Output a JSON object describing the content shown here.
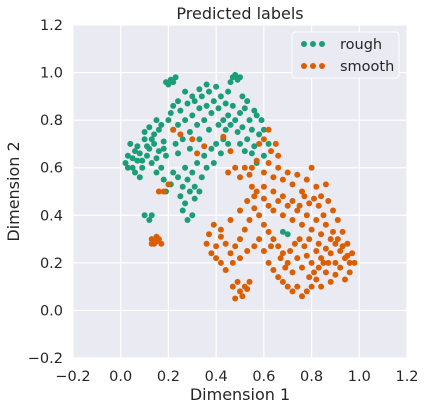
{
  "chart_data": {
    "type": "scatter",
    "title": "Predicted labels",
    "xlabel": "Dimension 1",
    "ylabel": "Dimension 2",
    "xlim": [
      -0.2,
      1.2
    ],
    "ylim": [
      -0.2,
      1.2
    ],
    "xticks": [
      "−0.2",
      "0.0",
      "0.2",
      "0.4",
      "0.6",
      "0.8",
      "1.0",
      "1.2"
    ],
    "yticks": [
      "−0.2",
      "0.0",
      "0.2",
      "0.4",
      "0.6",
      "0.8",
      "1.0",
      "1.2"
    ],
    "grid": true,
    "legend_position": "top-right",
    "background": "#EAEAF2",
    "series": [
      {
        "name": "rough",
        "color": "#1B9E77",
        "points": [
          [
            0.02,
            0.62
          ],
          [
            0.03,
            0.65
          ],
          [
            0.05,
            0.6
          ],
          [
            0.06,
            0.67
          ],
          [
            0.04,
            0.7
          ],
          [
            0.07,
            0.63
          ],
          [
            0.08,
            0.66
          ],
          [
            0.09,
            0.6
          ],
          [
            0.1,
            0.72
          ],
          [
            0.11,
            0.65
          ],
          [
            0.12,
            0.68
          ],
          [
            0.13,
            0.62
          ],
          [
            0.14,
            0.7
          ],
          [
            0.15,
            0.64
          ],
          [
            0.1,
            0.75
          ],
          [
            0.12,
            0.77
          ],
          [
            0.14,
            0.74
          ],
          [
            0.16,
            0.67
          ],
          [
            0.17,
            0.6
          ],
          [
            0.18,
            0.71
          ],
          [
            0.19,
            0.65
          ],
          [
            0.2,
            0.8
          ],
          [
            0.22,
            0.76
          ],
          [
            0.21,
            0.83
          ],
          [
            0.23,
            0.7
          ],
          [
            0.24,
            0.78
          ],
          [
            0.25,
            0.84
          ],
          [
            0.26,
            0.72
          ],
          [
            0.27,
            0.8
          ],
          [
            0.28,
            0.87
          ],
          [
            0.29,
            0.75
          ],
          [
            0.3,
            0.82
          ],
          [
            0.31,
            0.88
          ],
          [
            0.32,
            0.78
          ],
          [
            0.33,
            0.85
          ],
          [
            0.34,
            0.9
          ],
          [
            0.35,
            0.8
          ],
          [
            0.36,
            0.86
          ],
          [
            0.37,
            0.92
          ],
          [
            0.38,
            0.83
          ],
          [
            0.39,
            0.88
          ],
          [
            0.4,
            0.94
          ],
          [
            0.41,
            0.85
          ],
          [
            0.42,
            0.9
          ],
          [
            0.43,
            0.8
          ],
          [
            0.44,
            0.87
          ],
          [
            0.45,
            0.82
          ],
          [
            0.46,
            0.78
          ],
          [
            0.47,
            0.86
          ],
          [
            0.48,
            0.8
          ],
          [
            0.49,
            0.75
          ],
          [
            0.5,
            0.83
          ],
          [
            0.51,
            0.77
          ],
          [
            0.52,
            0.85
          ],
          [
            0.53,
            0.72
          ],
          [
            0.54,
            0.8
          ],
          [
            0.55,
            0.76
          ],
          [
            0.56,
            0.69
          ],
          [
            0.57,
            0.82
          ],
          [
            0.58,
            0.74
          ],
          [
            0.2,
            0.95
          ],
          [
            0.21,
            0.97
          ],
          [
            0.22,
            0.96
          ],
          [
            0.23,
            0.98
          ],
          [
            0.19,
            0.96
          ],
          [
            0.47,
            0.98
          ],
          [
            0.48,
            0.99
          ],
          [
            0.49,
            0.97
          ],
          [
            0.5,
            0.98
          ],
          [
            0.46,
            0.96
          ],
          [
            0.18,
            0.55
          ],
          [
            0.19,
            0.5
          ],
          [
            0.21,
            0.53
          ],
          [
            0.22,
            0.58
          ],
          [
            0.24,
            0.56
          ],
          [
            0.26,
            0.52
          ],
          [
            0.27,
            0.6
          ],
          [
            0.28,
            0.55
          ],
          [
            0.3,
            0.58
          ],
          [
            0.31,
            0.52
          ],
          [
            0.32,
            0.62
          ],
          [
            0.34,
            0.56
          ],
          [
            0.35,
            0.65
          ],
          [
            0.36,
            0.6
          ],
          [
            0.38,
            0.68
          ],
          [
            0.39,
            0.62
          ],
          [
            0.4,
            0.7
          ],
          [
            0.42,
            0.66
          ],
          [
            0.43,
            0.72
          ],
          [
            0.45,
            0.7
          ],
          [
            0.25,
            0.48
          ],
          [
            0.27,
            0.45
          ],
          [
            0.29,
            0.5
          ],
          [
            0.31,
            0.47
          ],
          [
            0.33,
            0.5
          ],
          [
            0.28,
            0.38
          ],
          [
            0.3,
            0.4
          ],
          [
            0.26,
            0.42
          ],
          [
            0.12,
            0.38
          ],
          [
            0.1,
            0.4
          ],
          [
            0.13,
            0.4
          ],
          [
            0.08,
            0.56
          ],
          [
            0.06,
            0.58
          ],
          [
            0.15,
            0.58
          ],
          [
            0.16,
            0.76
          ],
          [
            0.18,
            0.68
          ],
          [
            0.24,
            0.66
          ],
          [
            0.29,
            0.68
          ],
          [
            0.33,
            0.72
          ],
          [
            0.37,
            0.76
          ],
          [
            0.41,
            0.78
          ],
          [
            0.44,
            0.76
          ],
          [
            0.5,
            0.7
          ],
          [
            0.52,
            0.67
          ],
          [
            0.55,
            0.66
          ],
          [
            0.57,
            0.62
          ],
          [
            0.6,
            0.65
          ],
          [
            0.62,
            0.7
          ],
          [
            0.6,
            0.76
          ],
          [
            0.59,
            0.8
          ],
          [
            0.56,
            0.84
          ],
          [
            0.53,
            0.88
          ],
          [
            0.51,
            0.9
          ],
          [
            0.45,
            0.92
          ],
          [
            0.36,
            0.95
          ],
          [
            0.33,
            0.93
          ],
          [
            0.3,
            0.9
          ],
          [
            0.27,
            0.92
          ],
          [
            0.24,
            0.88
          ],
          [
            0.22,
            0.86
          ],
          [
            0.17,
            0.78
          ],
          [
            0.15,
            0.8
          ],
          [
            0.13,
            0.72
          ],
          [
            0.11,
            0.69
          ],
          [
            0.09,
            0.63
          ],
          [
            0.07,
            0.69
          ],
          [
            0.05,
            0.64
          ],
          [
            0.03,
            0.6
          ],
          [
            0.68,
            0.33
          ],
          [
            0.7,
            0.32
          ]
        ]
      },
      {
        "name": "smooth",
        "color": "#D95F02",
        "points": [
          [
            0.55,
            0.6
          ],
          [
            0.57,
            0.63
          ],
          [
            0.6,
            0.58
          ],
          [
            0.62,
            0.62
          ],
          [
            0.64,
            0.56
          ],
          [
            0.66,
            0.6
          ],
          [
            0.68,
            0.55
          ],
          [
            0.7,
            0.58
          ],
          [
            0.72,
            0.53
          ],
          [
            0.74,
            0.57
          ],
          [
            0.76,
            0.5
          ],
          [
            0.78,
            0.55
          ],
          [
            0.8,
            0.6
          ],
          [
            0.82,
            0.52
          ],
          [
            0.84,
            0.48
          ],
          [
            0.86,
            0.53
          ],
          [
            0.63,
            0.67
          ],
          [
            0.65,
            0.7
          ],
          [
            0.6,
            0.72
          ],
          [
            0.62,
            0.76
          ],
          [
            0.58,
            0.7
          ],
          [
            0.66,
            0.65
          ],
          [
            0.55,
            0.52
          ],
          [
            0.57,
            0.5
          ],
          [
            0.6,
            0.47
          ],
          [
            0.62,
            0.44
          ],
          [
            0.64,
            0.42
          ],
          [
            0.66,
            0.46
          ],
          [
            0.68,
            0.4
          ],
          [
            0.7,
            0.44
          ],
          [
            0.72,
            0.38
          ],
          [
            0.74,
            0.42
          ],
          [
            0.76,
            0.36
          ],
          [
            0.78,
            0.4
          ],
          [
            0.8,
            0.34
          ],
          [
            0.82,
            0.38
          ],
          [
            0.84,
            0.32
          ],
          [
            0.86,
            0.36
          ],
          [
            0.88,
            0.3
          ],
          [
            0.9,
            0.28
          ],
          [
            0.92,
            0.25
          ],
          [
            0.94,
            0.22
          ],
          [
            0.96,
            0.2
          ],
          [
            0.9,
            0.2
          ],
          [
            0.88,
            0.24
          ],
          [
            0.86,
            0.26
          ],
          [
            0.84,
            0.22
          ],
          [
            0.82,
            0.25
          ],
          [
            0.8,
            0.2
          ],
          [
            0.78,
            0.23
          ],
          [
            0.76,
            0.18
          ],
          [
            0.74,
            0.22
          ],
          [
            0.72,
            0.16
          ],
          [
            0.7,
            0.2
          ],
          [
            0.68,
            0.24
          ],
          [
            0.66,
            0.27
          ],
          [
            0.64,
            0.3
          ],
          [
            0.62,
            0.33
          ],
          [
            0.6,
            0.36
          ],
          [
            0.58,
            0.4
          ],
          [
            0.56,
            0.43
          ],
          [
            0.54,
            0.38
          ],
          [
            0.52,
            0.34
          ],
          [
            0.5,
            0.3
          ],
          [
            0.48,
            0.27
          ],
          [
            0.46,
            0.24
          ],
          [
            0.44,
            0.28
          ],
          [
            0.42,
            0.31
          ],
          [
            0.4,
            0.27
          ],
          [
            0.38,
            0.24
          ],
          [
            0.36,
            0.28
          ],
          [
            0.4,
            0.22
          ],
          [
            0.42,
            0.2
          ],
          [
            0.44,
            0.17
          ],
          [
            0.47,
            0.2
          ],
          [
            0.5,
            0.22
          ],
          [
            0.53,
            0.25
          ],
          [
            0.56,
            0.27
          ],
          [
            0.58,
            0.3
          ],
          [
            0.6,
            0.25
          ],
          [
            0.62,
            0.2
          ],
          [
            0.64,
            0.17
          ],
          [
            0.66,
            0.14
          ],
          [
            0.68,
            0.12
          ],
          [
            0.7,
            0.1
          ],
          [
            0.72,
            0.08
          ],
          [
            0.74,
            0.1
          ],
          [
            0.76,
            0.06
          ],
          [
            0.78,
            0.08
          ],
          [
            0.8,
            0.1
          ],
          [
            0.82,
            0.13
          ],
          [
            0.84,
            0.1
          ],
          [
            0.86,
            0.16
          ],
          [
            0.88,
            0.12
          ],
          [
            0.9,
            0.15
          ],
          [
            0.92,
            0.18
          ],
          [
            0.94,
            0.13
          ],
          [
            0.96,
            0.16
          ],
          [
            0.98,
            0.2
          ],
          [
            0.97,
            0.24
          ],
          [
            0.95,
            0.28
          ],
          [
            0.93,
            0.33
          ],
          [
            0.91,
            0.38
          ],
          [
            0.89,
            0.42
          ],
          [
            0.87,
            0.46
          ],
          [
            0.85,
            0.4
          ],
          [
            0.83,
            0.44
          ],
          [
            0.81,
            0.47
          ],
          [
            0.79,
            0.45
          ],
          [
            0.77,
            0.48
          ],
          [
            0.48,
            0.05
          ],
          [
            0.5,
            0.08
          ],
          [
            0.52,
            0.1
          ],
          [
            0.54,
            0.12
          ],
          [
            0.49,
            0.12
          ],
          [
            0.51,
            0.06
          ],
          [
            0.53,
            0.09
          ],
          [
            0.47,
            0.1
          ],
          [
            0.13,
            0.3
          ],
          [
            0.14,
            0.28
          ],
          [
            0.15,
            0.29
          ],
          [
            0.16,
            0.3
          ],
          [
            0.13,
            0.28
          ],
          [
            0.17,
            0.28
          ],
          [
            0.15,
            0.31
          ],
          [
            0.2,
            0.53
          ],
          [
            0.18,
            0.5
          ],
          [
            0.16,
            0.5
          ],
          [
            0.22,
            0.76
          ],
          [
            0.25,
            0.74
          ],
          [
            0.3,
            0.72
          ],
          [
            0.35,
            0.69
          ],
          [
            0.32,
            0.66
          ],
          [
            0.43,
            0.73
          ],
          [
            0.46,
            0.67
          ],
          [
            0.48,
            0.6
          ],
          [
            0.45,
            0.58
          ],
          [
            0.5,
            0.56
          ],
          [
            0.52,
            0.6
          ],
          [
            0.54,
            0.57
          ],
          [
            0.42,
            0.34
          ],
          [
            0.39,
            0.36
          ],
          [
            0.37,
            0.32
          ],
          [
            0.46,
            0.38
          ],
          [
            0.5,
            0.42
          ],
          [
            0.53,
            0.46
          ],
          [
            0.56,
            0.48
          ],
          [
            0.6,
            0.52
          ],
          [
            0.64,
            0.5
          ],
          [
            0.68,
            0.48
          ],
          [
            0.72,
            0.46
          ],
          [
            0.75,
            0.44
          ],
          [
            0.79,
            0.3
          ],
          [
            0.83,
            0.28
          ],
          [
            0.85,
            0.2
          ],
          [
            0.87,
            0.2
          ],
          [
            0.89,
            0.33
          ],
          [
            0.91,
            0.3
          ],
          [
            0.93,
            0.27
          ],
          [
            0.95,
            0.23
          ],
          [
            0.63,
            0.27
          ],
          [
            0.67,
            0.22
          ],
          [
            0.69,
            0.18
          ],
          [
            0.71,
            0.25
          ],
          [
            0.73,
            0.28
          ],
          [
            0.75,
            0.3
          ],
          [
            0.77,
            0.27
          ],
          [
            0.79,
            0.14
          ],
          [
            0.81,
            0.16
          ],
          [
            0.83,
            0.18
          ]
        ]
      }
    ]
  }
}
